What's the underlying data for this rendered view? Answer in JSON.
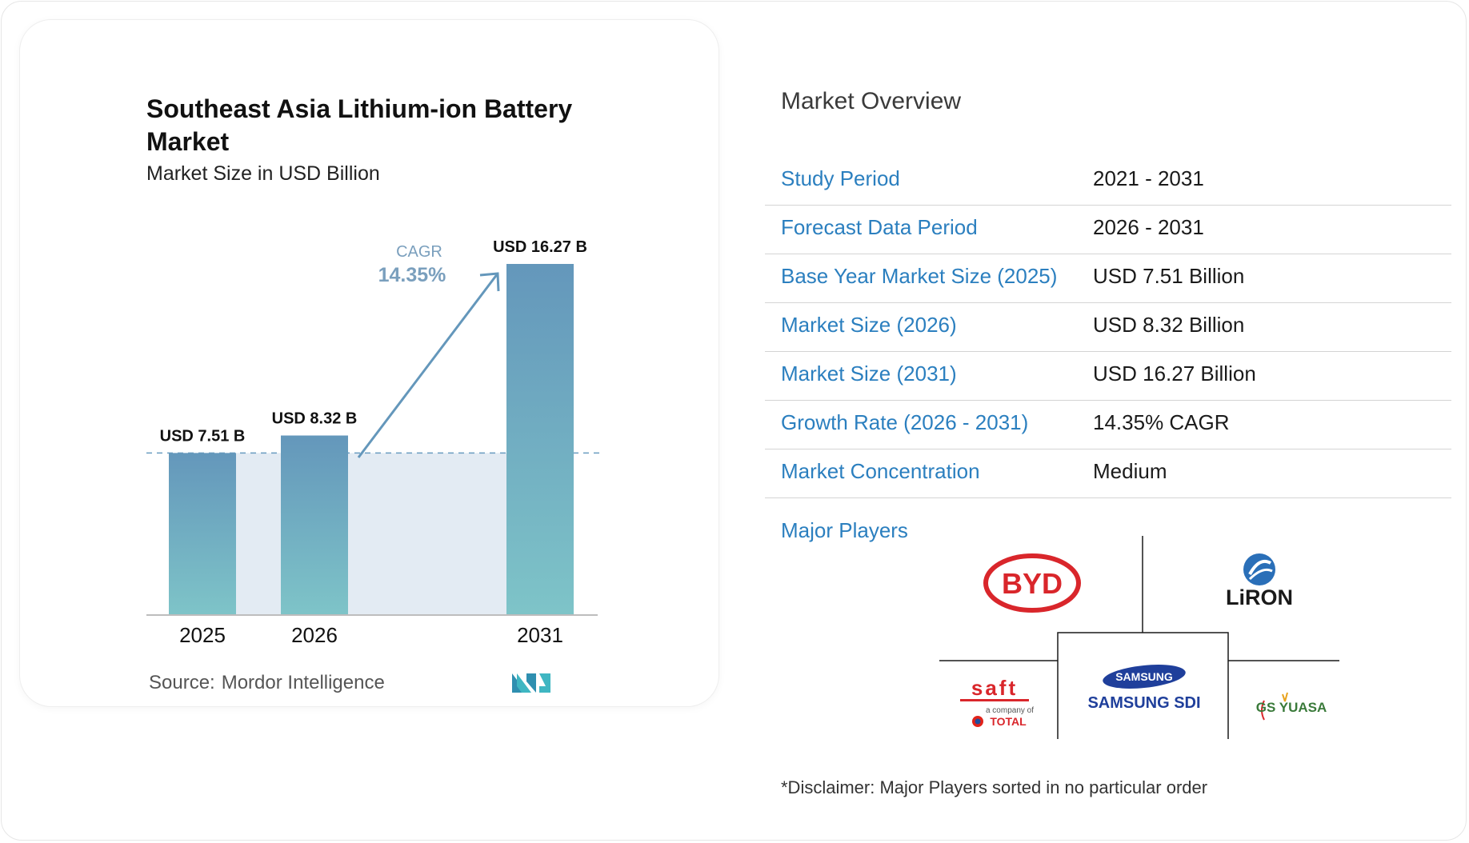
{
  "chart_data": {
    "type": "bar",
    "title": "Southeast Asia Lithium-ion Battery Market",
    "subtitle": "Market Size in USD Billion",
    "categories": [
      "2025",
      "2026",
      "2031"
    ],
    "values": [
      7.51,
      8.32,
      16.27
    ],
    "data_labels": [
      "USD 7.51 B",
      "USD 8.32 B",
      "USD 16.27 B"
    ],
    "cagr_label": "CAGR",
    "cagr_value": "14.35%",
    "bar_color_top": "#6497bb",
    "bar_color_bottom": "#7ec4c8",
    "ylim": [
      0,
      17
    ],
    "grid": false,
    "xlabel": "",
    "ylabel": ""
  },
  "source": {
    "label": "Source:",
    "name": "Mordor Intelligence",
    "logo_icon": "mordor-intelligence-logo"
  },
  "overview": {
    "title": "Market Overview",
    "rows": [
      {
        "label": "Study Period",
        "value": "2021 - 2031"
      },
      {
        "label": "Forecast Data Period",
        "value": "2026 - 2031"
      },
      {
        "label": "Base Year Market Size (2025)",
        "value": "USD 7.51 Billion"
      },
      {
        "label": "Market Size (2026)",
        "value": "USD 8.32 Billion"
      },
      {
        "label": "Market Size (2031)",
        "value": "USD 16.27 Billion"
      },
      {
        "label": "Growth Rate (2026 - 2031)",
        "value": "14.35% CAGR"
      },
      {
        "label": "Market Concentration",
        "value": "Medium"
      }
    ],
    "label_color": "#2b7fbf"
  },
  "players": {
    "label": "Major Players",
    "logos": {
      "byd": "BYD",
      "liron": "LiRON",
      "saft": "saft",
      "saft_sub": "a company of",
      "total": "TOTAL",
      "samsung": "SAMSUNG",
      "samsung_sdi": "SAMSUNG SDI",
      "gs_yuasa": "GS YUASA"
    }
  },
  "disclaimer": "*Disclaimer: Major Players sorted in no particular order"
}
